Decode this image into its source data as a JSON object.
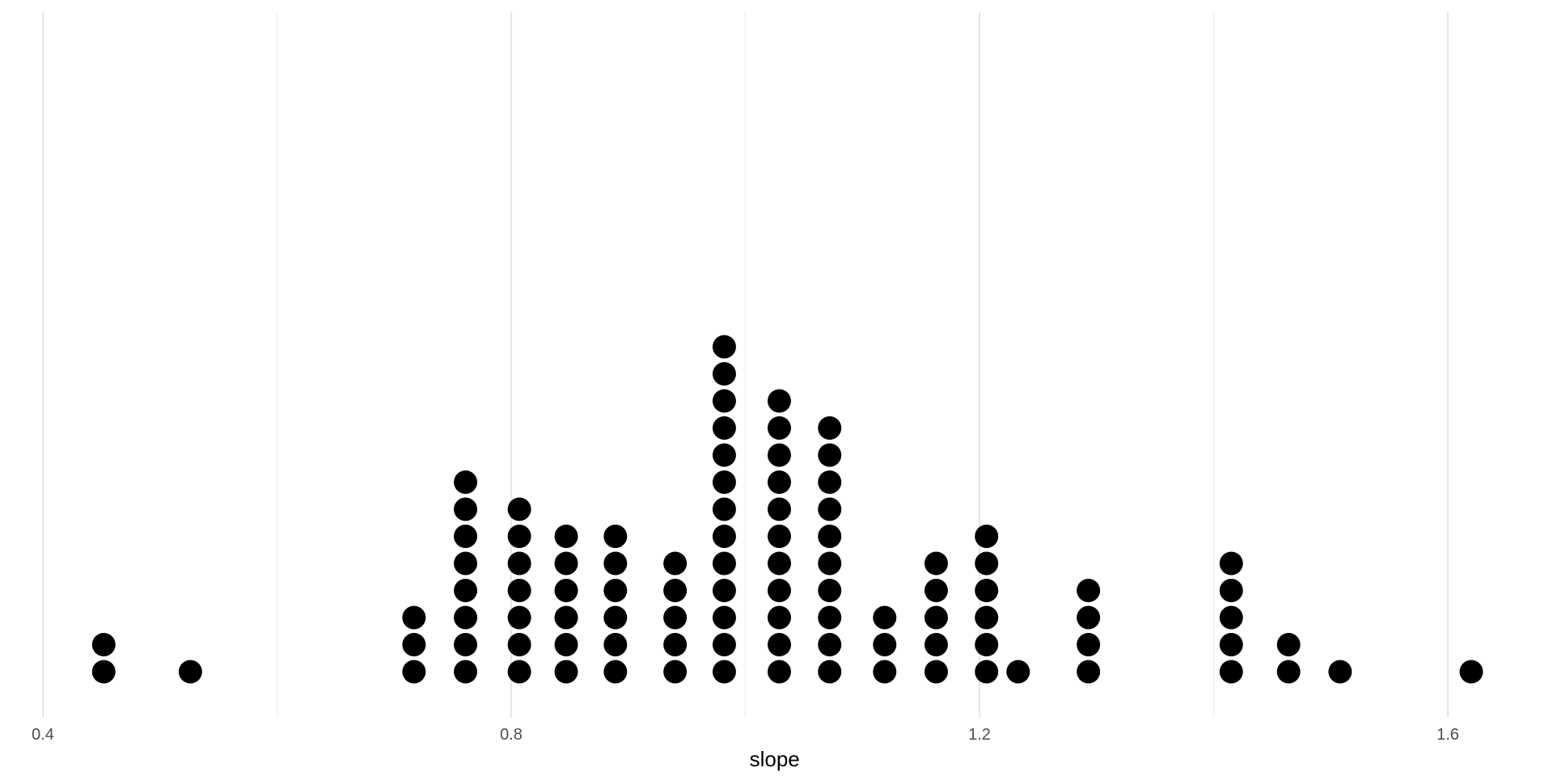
{
  "chart_data": {
    "type": "scatter",
    "subtype": "dotplot",
    "title": "",
    "xlabel": "slope",
    "ylabel": "",
    "xlim": [
      0.4,
      1.65
    ],
    "x_ticks": [
      0.4,
      0.8,
      1.2,
      1.6
    ],
    "x_tick_labels": [
      "0.4",
      "0.8",
      "1.2",
      "1.6"
    ],
    "minor_grid_x": [
      0.6,
      1.0,
      1.4
    ],
    "grid": "vertical-only",
    "dot_color": "#000000",
    "stacks": [
      {
        "x": 0.452,
        "count": 2
      },
      {
        "x": 0.526,
        "count": 1
      },
      {
        "x": 0.717,
        "count": 3
      },
      {
        "x": 0.761,
        "count": 8
      },
      {
        "x": 0.807,
        "count": 7
      },
      {
        "x": 0.847,
        "count": 6
      },
      {
        "x": 0.889,
        "count": 6
      },
      {
        "x": 0.94,
        "count": 5
      },
      {
        "x": 0.982,
        "count": 13
      },
      {
        "x": 1.029,
        "count": 11
      },
      {
        "x": 1.072,
        "count": 10
      },
      {
        "x": 1.119,
        "count": 3
      },
      {
        "x": 1.163,
        "count": 5
      },
      {
        "x": 1.206,
        "count": 6
      },
      {
        "x": 1.233,
        "count": 1
      },
      {
        "x": 1.293,
        "count": 4
      },
      {
        "x": 1.415,
        "count": 5
      },
      {
        "x": 1.464,
        "count": 2
      },
      {
        "x": 1.508,
        "count": 1
      },
      {
        "x": 1.62,
        "count": 1
      }
    ]
  }
}
